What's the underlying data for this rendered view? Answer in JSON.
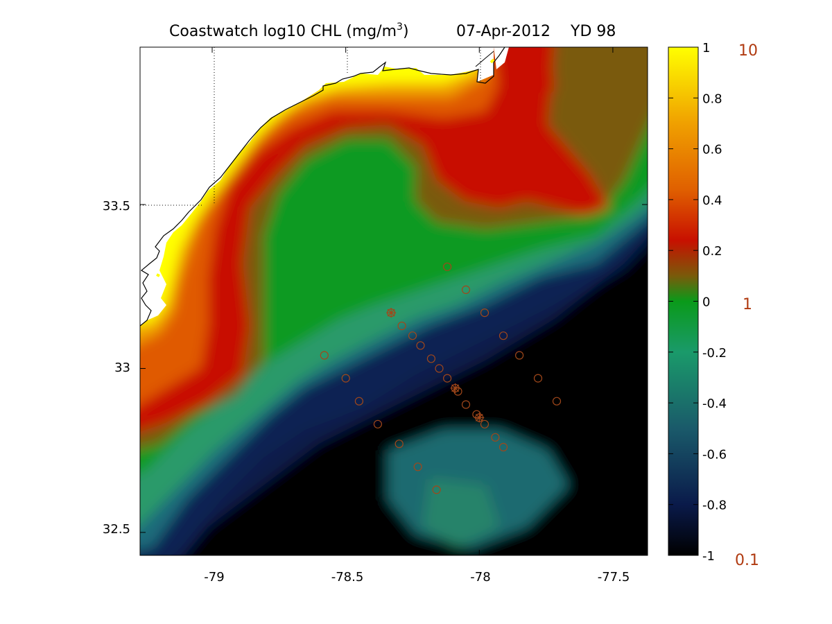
{
  "title": {
    "main": "Coastwatch  log10  CHL (mg/m",
    "superscript": "3",
    "close": ")",
    "date": "07-Apr-2012",
    "yearday": "YD 98"
  },
  "map": {
    "x_ticks": [
      "-79",
      "-78.5",
      "-78",
      "-77.5"
    ],
    "y_ticks": [
      "33.5",
      "33",
      "32.5"
    ],
    "x_range": [
      -79.27,
      -77.37
    ],
    "y_range": [
      32.43,
      33.98
    ]
  },
  "colorbar": {
    "ticks": [
      "1",
      "0.8",
      "0.6",
      "0.4",
      "0.2",
      "0",
      "-0.2",
      "-0.4",
      "-0.6",
      "-0.8",
      "-1"
    ],
    "linear_labels": [
      "10",
      "1",
      "0.1"
    ],
    "colors": [
      "#000000",
      "#0a1a4a",
      "#1a5a6a",
      "#1a9a6a",
      "#0a9a1a",
      "#7a5a0a",
      "#c81000",
      "#e06000",
      "#f0a000",
      "#ffff00"
    ]
  },
  "stations": [
    [
      -78.12,
      33.31
    ],
    [
      -78.05,
      33.24
    ],
    [
      -77.98,
      33.17
    ],
    [
      -77.91,
      33.1
    ],
    [
      -78.33,
      33.17
    ],
    [
      -78.29,
      33.13
    ],
    [
      -78.25,
      33.1
    ],
    [
      -78.22,
      33.07
    ],
    [
      -78.18,
      33.03
    ],
    [
      -78.15,
      33.0
    ],
    [
      -78.12,
      32.97
    ],
    [
      -78.09,
      32.94
    ],
    [
      -78.08,
      32.93
    ],
    [
      -78.05,
      32.89
    ],
    [
      -78.01,
      32.86
    ],
    [
      -78.0,
      32.85
    ],
    [
      -77.98,
      32.83
    ],
    [
      -77.94,
      32.79
    ],
    [
      -77.91,
      32.76
    ],
    [
      -78.58,
      33.04
    ],
    [
      -78.5,
      32.97
    ],
    [
      -78.45,
      32.9
    ],
    [
      -78.38,
      32.83
    ],
    [
      -78.3,
      32.77
    ],
    [
      -78.23,
      32.7
    ],
    [
      -78.16,
      32.63
    ],
    [
      -77.85,
      33.04
    ],
    [
      -77.78,
      32.97
    ],
    [
      -77.71,
      32.9
    ]
  ],
  "crossed_stations": [
    [
      -78.33,
      33.17
    ],
    [
      -78.09,
      32.94
    ],
    [
      -78.0,
      32.85
    ]
  ],
  "series_colors": {
    "station": "#a0471a",
    "coast": "#000000"
  }
}
